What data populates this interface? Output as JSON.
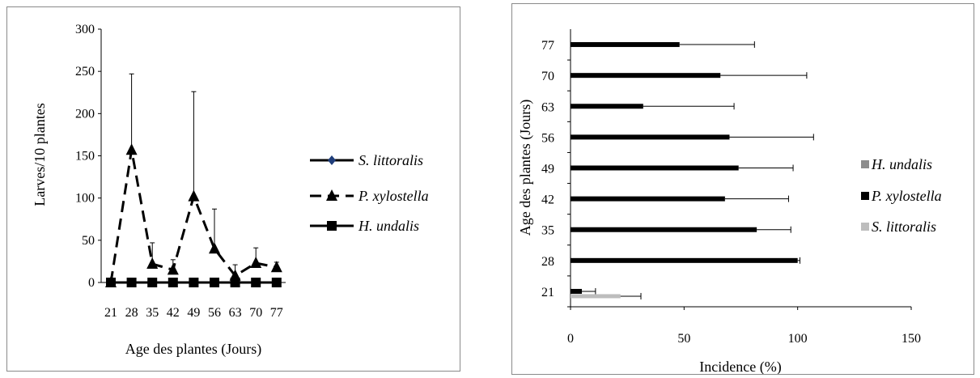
{
  "chart_data": [
    {
      "type": "line",
      "xlabel": "Age des plantes (Jours)",
      "ylabel": "Larves/10 plantes",
      "ylim": [
        0,
        300
      ],
      "yticks": [
        0,
        50,
        100,
        150,
        200,
        250,
        300
      ],
      "categories": [
        "21",
        "28",
        "35",
        "42",
        "49",
        "56",
        "63",
        "70",
        "77"
      ],
      "legend_position": "right",
      "series": [
        {
          "name": "S. littoralis",
          "marker": "diamond",
          "line": "solid",
          "values": [
            0,
            0,
            0,
            0,
            0,
            0,
            0,
            0,
            0
          ],
          "errors": [
            0,
            0,
            0,
            0,
            0,
            0,
            0,
            0,
            0
          ]
        },
        {
          "name": "P. xylostella",
          "marker": "triangle",
          "line": "dashed",
          "values": [
            0,
            157,
            22,
            15,
            102,
            40,
            8,
            23,
            18
          ],
          "errors": [
            0,
            90,
            25,
            12,
            124,
            47,
            13,
            18,
            6
          ]
        },
        {
          "name": "H. undalis",
          "marker": "square",
          "line": "solid",
          "values": [
            0,
            0,
            0,
            0,
            0,
            0,
            0,
            0,
            0
          ],
          "errors": [
            0,
            0,
            0,
            0,
            0,
            0,
            0,
            0,
            0
          ]
        }
      ]
    },
    {
      "type": "bar",
      "orientation": "horizontal",
      "xlabel": "Incidence (%)",
      "ylabel": "Age des plantes (Jours)",
      "xlim": [
        0,
        150
      ],
      "xticks": [
        0,
        50,
        100,
        150
      ],
      "categories": [
        "21",
        "28",
        "35",
        "42",
        "49",
        "56",
        "63",
        "70",
        "77"
      ],
      "legend_position": "right",
      "series": [
        {
          "name": "H. undalis",
          "color": "#8c8c8c",
          "values": [
            0,
            0,
            0,
            0,
            0,
            0,
            0,
            0,
            0
          ],
          "errors": [
            0,
            0,
            0,
            0,
            0,
            0,
            0,
            0,
            0
          ]
        },
        {
          "name": "P. xylostella",
          "color": "#000000",
          "values": [
            5,
            100,
            82,
            68,
            74,
            70,
            32,
            66,
            48
          ],
          "errors": [
            6,
            1,
            15,
            28,
            24,
            37,
            40,
            38,
            33
          ]
        },
        {
          "name": "S. littoralis",
          "color": "#bdbdbd",
          "values": [
            22,
            0,
            0,
            0,
            0,
            0,
            0,
            0,
            0
          ],
          "errors": [
            9,
            0,
            0,
            0,
            0,
            0,
            0,
            0,
            0
          ]
        }
      ]
    }
  ]
}
